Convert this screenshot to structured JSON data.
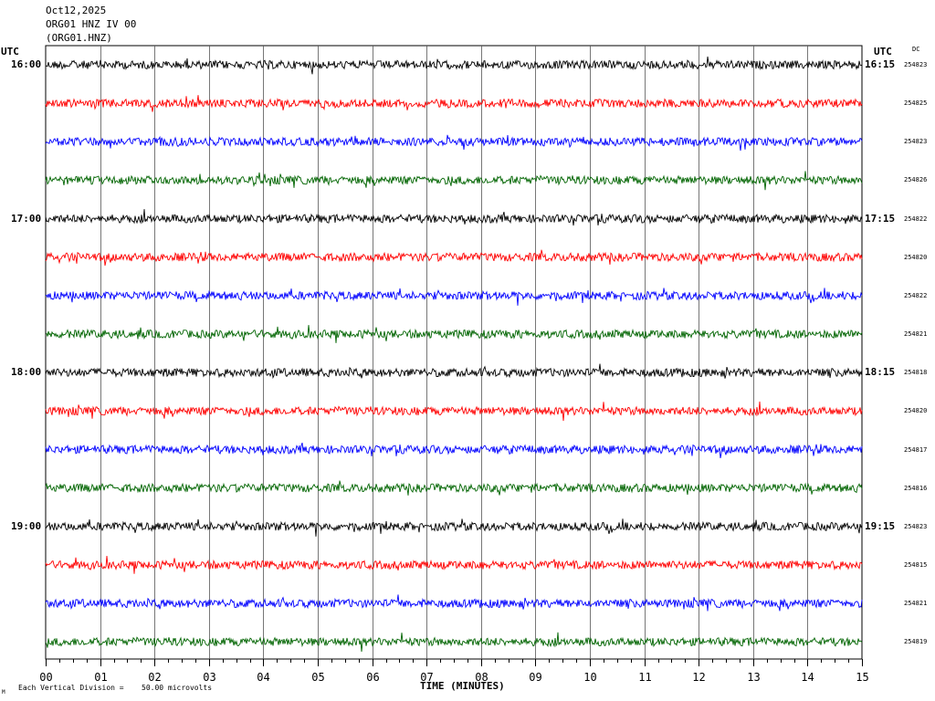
{
  "header": {
    "date": "Oct12,2025",
    "station": "ORG01 HNZ IV 00",
    "channel": "(ORG01.HNZ)"
  },
  "axes": {
    "left_timezone": "UTC",
    "right_timezone": "UTC",
    "dc_header": "DC",
    "xlabel": "TIME (MINUTES)"
  },
  "footer": {
    "mark": "M",
    "scale_label": "Each Vertical Division =",
    "scale_value": "50.00 microvolts"
  },
  "colors": {
    "trace_cycle": [
      "#000000",
      "#ff0000",
      "#0000ff",
      "#006400"
    ],
    "grid": "#000000",
    "background": "#ffffff"
  },
  "chart_data": {
    "type": "line",
    "subtype": "helicorder",
    "x_range": [
      0,
      15
    ],
    "x_ticks": [
      "00",
      "01",
      "02",
      "03",
      "04",
      "05",
      "06",
      "07",
      "08",
      "09",
      "10",
      "11",
      "12",
      "13",
      "14",
      "15"
    ],
    "grid_vertical": true,
    "rows": [
      {
        "left_label": "16:00",
        "right_label": "16:15",
        "dc": "254823"
      },
      {
        "left_label": "",
        "right_label": "",
        "dc": "254825"
      },
      {
        "left_label": "",
        "right_label": "",
        "dc": "254823"
      },
      {
        "left_label": "",
        "right_label": "",
        "dc": "254826"
      },
      {
        "left_label": "17:00",
        "right_label": "17:15",
        "dc": "254822"
      },
      {
        "left_label": "",
        "right_label": "",
        "dc": "254820"
      },
      {
        "left_label": "",
        "right_label": "",
        "dc": "254822"
      },
      {
        "left_label": "",
        "right_label": "",
        "dc": "254821"
      },
      {
        "left_label": "18:00",
        "right_label": "18:15",
        "dc": "254818"
      },
      {
        "left_label": "",
        "right_label": "",
        "dc": "254820"
      },
      {
        "left_label": "",
        "right_label": "",
        "dc": "254817"
      },
      {
        "left_label": "",
        "right_label": "",
        "dc": "254816"
      },
      {
        "left_label": "19:00",
        "right_label": "19:15",
        "dc": "254823"
      },
      {
        "left_label": "",
        "right_label": "",
        "dc": "254815"
      },
      {
        "left_label": "",
        "right_label": "",
        "dc": "254821"
      },
      {
        "left_label": "",
        "right_label": "",
        "dc": "254819"
      }
    ]
  }
}
